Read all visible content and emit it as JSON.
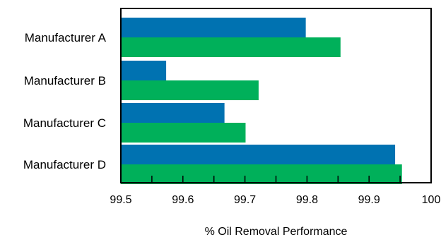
{
  "chart_data": {
    "type": "bar",
    "orientation": "horizontal",
    "categories": [
      "Manufacturer A",
      "Manufacturer B",
      "Manufacturer C",
      "Manufacturer D"
    ],
    "series": [
      {
        "color": "#0072b1",
        "values": [
          99.798,
          99.573,
          99.667,
          99.942
        ]
      },
      {
        "color": "#00b05a",
        "values": [
          99.854,
          99.722,
          99.701,
          99.953
        ]
      }
    ],
    "xlim": [
      99.5,
      100
    ],
    "xticks": [
      "99.5",
      "99.6",
      "99.7",
      "99.8",
      "99.9",
      "100"
    ],
    "xlabel": "% Oil Removal Performance",
    "grid": false,
    "legend": "none"
  }
}
